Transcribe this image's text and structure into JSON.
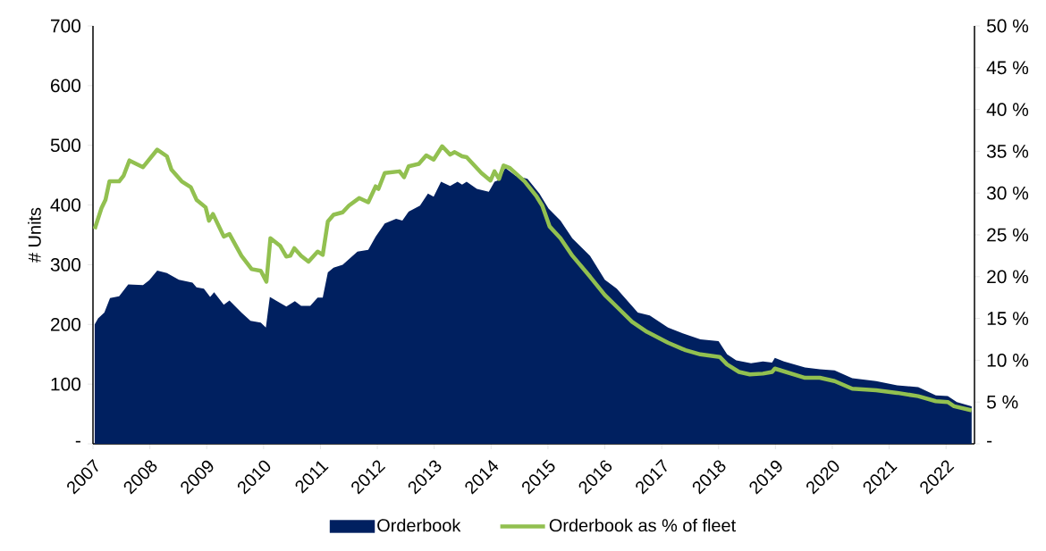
{
  "chart_data": {
    "type": "area",
    "ylabel": "# Units",
    "xlim": [
      2007,
      2022.5
    ],
    "xticks": [
      2007,
      2008,
      2009,
      2010,
      2011,
      2012,
      2013,
      2014,
      2015,
      2016,
      2017,
      2018,
      2019,
      2020,
      2021,
      2022
    ],
    "ylim": [
      0,
      700
    ],
    "yticks": [
      {
        "value": 0,
        "label": "-"
      },
      100,
      200,
      300,
      400,
      500,
      600,
      700
    ],
    "y2lim": [
      0,
      50
    ],
    "y2ticks": [
      {
        "value": 0,
        "label": "-"
      },
      {
        "value": 5,
        "label": "5 %"
      },
      {
        "value": 10,
        "label": "10 %"
      },
      {
        "value": 15,
        "label": "15 %"
      },
      {
        "value": 20,
        "label": "20 %"
      },
      {
        "value": 25,
        "label": "25 %"
      },
      {
        "value": 30,
        "label": "30 %"
      },
      {
        "value": 35,
        "label": "35 %"
      },
      {
        "value": 40,
        "label": "40 %"
      },
      {
        "value": 45,
        "label": "45 %"
      },
      {
        "value": 50,
        "label": "50 %"
      }
    ],
    "legend": "bottom",
    "series": [
      {
        "name": "Orderbook",
        "color": "#002060",
        "x": [
          2007.03,
          2007.09,
          2007.2,
          2007.3,
          2007.46,
          2007.62,
          2007.88,
          2007.99,
          2008.13,
          2008.3,
          2008.51,
          2008.75,
          2008.82,
          2008.95,
          2009.06,
          2009.13,
          2009.3,
          2009.4,
          2009.61,
          2009.77,
          2009.95,
          2010.04,
          2010.11,
          2010.27,
          2010.4,
          2010.55,
          2010.66,
          2010.82,
          2010.95,
          2011.04,
          2011.13,
          2011.23,
          2011.39,
          2011.65,
          2011.84,
          2011.97,
          2012.13,
          2012.33,
          2012.44,
          2012.55,
          2012.75,
          2012.89,
          2012.99,
          2013.12,
          2013.28,
          2013.41,
          2013.49,
          2013.57,
          2013.75,
          2013.96,
          2014.06,
          2014.14,
          2014.25,
          2014.43,
          2014.64,
          2014.85,
          2015.01,
          2015.22,
          2015.43,
          2015.74,
          2016.0,
          2016.21,
          2016.58,
          2016.79,
          2017.11,
          2017.37,
          2017.68,
          2018.0,
          2018.15,
          2018.31,
          2018.57,
          2018.78,
          2018.94,
          2018.99,
          2019.15,
          2019.52,
          2019.78,
          2020.04,
          2020.35,
          2020.77,
          2021.14,
          2021.51,
          2021.82,
          2022.03,
          2022.19,
          2022.45
        ],
        "values": [
          200,
          210,
          220,
          244,
          247,
          267,
          266,
          274,
          290,
          286,
          275,
          270,
          262,
          260,
          246,
          254,
          233,
          240,
          220,
          206,
          203,
          195,
          246,
          237,
          230,
          239,
          231,
          231,
          245,
          245,
          287,
          295,
          300,
          322,
          325,
          347,
          369,
          377,
          374,
          389,
          399,
          419,
          414,
          439,
          432,
          439,
          434,
          439,
          427,
          422,
          439,
          442,
          462,
          449,
          444,
          419,
          394,
          374,
          344,
          315,
          275,
          260,
          220,
          215,
          195,
          185,
          175,
          172,
          150,
          140,
          135,
          138,
          136,
          144,
          138,
          128,
          125,
          123,
          110,
          105,
          98,
          95,
          81,
          80,
          70,
          63
        ]
      },
      {
        "name": "Orderbook as % of fleet",
        "type": "line",
        "axis": "y2",
        "color": "#92c050",
        "x": [
          2007.03,
          2007.15,
          2007.22,
          2007.29,
          2007.46,
          2007.54,
          2007.64,
          2007.88,
          2008.13,
          2008.3,
          2008.38,
          2008.56,
          2008.72,
          2008.82,
          2008.98,
          2009.04,
          2009.11,
          2009.3,
          2009.4,
          2009.61,
          2009.79,
          2009.95,
          2010.05,
          2010.12,
          2010.29,
          2010.4,
          2010.47,
          2010.54,
          2010.66,
          2010.79,
          2010.95,
          2011.04,
          2011.13,
          2011.23,
          2011.39,
          2011.5,
          2011.68,
          2011.84,
          2011.97,
          2012.02,
          2012.13,
          2012.39,
          2012.47,
          2012.55,
          2012.73,
          2012.86,
          2012.99,
          2013.14,
          2013.28,
          2013.36,
          2013.49,
          2013.57,
          2013.83,
          2013.99,
          2014.06,
          2014.14,
          2014.22,
          2014.33,
          2014.59,
          2014.8,
          2014.9,
          2015.03,
          2015.22,
          2015.43,
          2015.74,
          2016.0,
          2016.21,
          2016.48,
          2016.74,
          2017.11,
          2017.42,
          2017.68,
          2018.02,
          2018.15,
          2018.36,
          2018.55,
          2018.78,
          2018.94,
          2018.99,
          2019.52,
          2019.78,
          2020.04,
          2020.35,
          2020.77,
          2021.14,
          2021.51,
          2021.82,
          2022.03,
          2022.14,
          2022.45
        ],
        "values": [
          25.7,
          28.2,
          29.2,
          31.4,
          31.4,
          32.1,
          33.9,
          33.1,
          35.2,
          34.4,
          32.8,
          31.4,
          30.7,
          29.2,
          28.3,
          26.7,
          27.5,
          24.8,
          25.1,
          22.5,
          20.9,
          20.7,
          19.4,
          24.6,
          23.7,
          22.4,
          22.5,
          23.4,
          22.5,
          21.8,
          23.0,
          22.6,
          26.6,
          27.4,
          27.7,
          28.5,
          29.4,
          28.9,
          30.8,
          30.5,
          32.4,
          32.6,
          31.9,
          33.2,
          33.5,
          34.5,
          34.0,
          35.6,
          34.6,
          34.9,
          34.4,
          34.3,
          32.4,
          31.5,
          32.6,
          31.7,
          33.3,
          33.0,
          31.4,
          29.6,
          28.5,
          26.0,
          24.6,
          22.5,
          20.0,
          17.8,
          16.4,
          14.6,
          13.4,
          12.1,
          11.2,
          10.7,
          10.4,
          9.5,
          8.6,
          8.3,
          8.4,
          8.6,
          9.0,
          7.9,
          7.9,
          7.5,
          6.6,
          6.4,
          6.1,
          5.7,
          5.1,
          5.0,
          4.5,
          4.0
        ]
      }
    ]
  }
}
